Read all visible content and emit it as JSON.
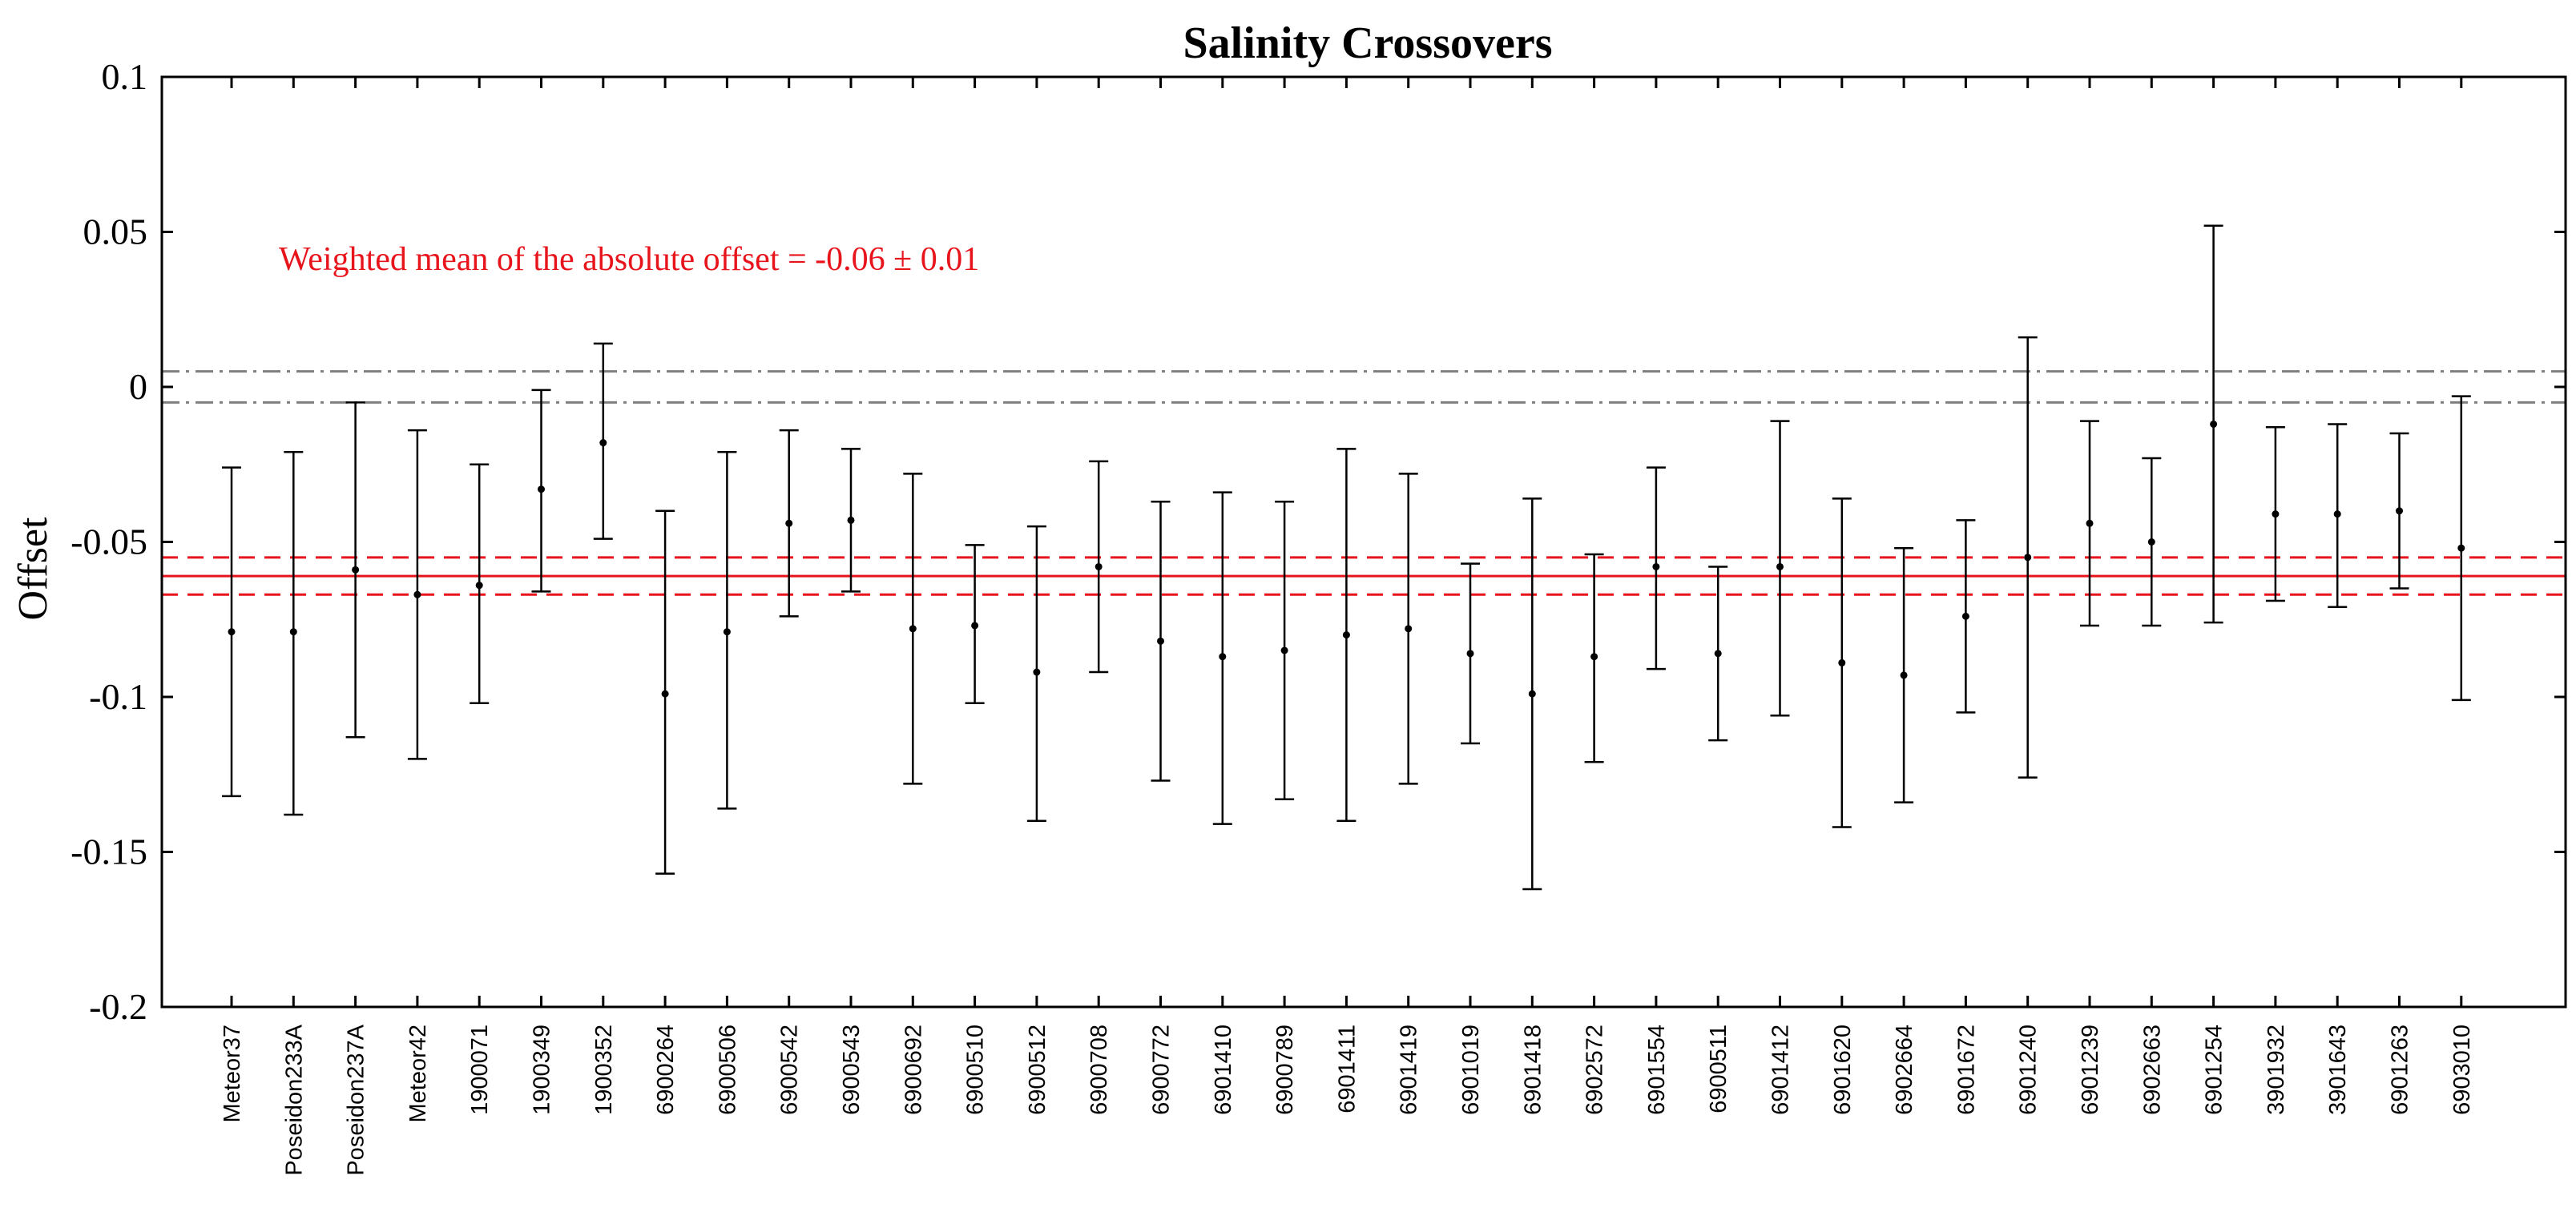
{
  "chart_data": {
    "type": "errorbar",
    "title": "Salinity Crossovers",
    "xlabel": "",
    "ylabel": "Offset",
    "ylim": [
      -0.2,
      0.1
    ],
    "yticks": [
      "0.1",
      "0.05",
      "0",
      "-0.05",
      "-0.1",
      "-0.15",
      "-0.2"
    ],
    "ytick_values": [
      0.1,
      0.05,
      0,
      -0.05,
      -0.1,
      -0.15,
      -0.2
    ],
    "grid": false,
    "annotation": "Weighted mean of the absolute offset = -0.06 ± 0.01",
    "reference_lines": {
      "mean": -0.061,
      "mean_band": [
        -0.055,
        -0.067
      ],
      "zero_band": [
        0.005,
        -0.005
      ]
    },
    "colors": {
      "mean_line": "#e8141c",
      "zero_band": "#7f7f7f",
      "points": "#000000"
    },
    "categories": [
      "Meteor37",
      "Poseidon233A",
      "Poseidon237A",
      "Meteor42",
      "1900071",
      "1900349",
      "1900352",
      "6900264",
      "6900506",
      "6900542",
      "6900543",
      "6900692",
      "6900510",
      "6900512",
      "6900708",
      "6900772",
      "6901410",
      "6900789",
      "6901411",
      "6901419",
      "6901019",
      "6901418",
      "6902572",
      "6901554",
      "6900511",
      "6901412",
      "6901620",
      "6902664",
      "6901672",
      "6901240",
      "6901239",
      "6902663",
      "6901254",
      "3901932",
      "3901643",
      "6901263",
      "6903010"
    ],
    "values": [
      -0.079,
      -0.079,
      -0.059,
      -0.067,
      -0.064,
      -0.033,
      -0.018,
      -0.099,
      -0.079,
      -0.044,
      -0.043,
      -0.078,
      -0.077,
      -0.092,
      -0.058,
      -0.082,
      -0.087,
      -0.085,
      -0.08,
      -0.078,
      -0.086,
      -0.099,
      -0.087,
      -0.058,
      -0.086,
      -0.058,
      -0.089,
      -0.093,
      -0.074,
      -0.055,
      -0.044,
      -0.05,
      -0.012,
      -0.041,
      -0.041,
      -0.04,
      -0.052
    ],
    "upper": [
      -0.026,
      -0.021,
      -0.005,
      -0.014,
      -0.025,
      -0.001,
      0.014,
      -0.04,
      -0.021,
      -0.014,
      -0.02,
      -0.028,
      -0.051,
      -0.045,
      -0.024,
      -0.037,
      -0.034,
      -0.037,
      -0.02,
      -0.028,
      -0.057,
      -0.036,
      -0.054,
      -0.026,
      -0.058,
      -0.011,
      -0.036,
      -0.052,
      -0.043,
      0.016,
      -0.011,
      -0.023,
      0.052,
      -0.013,
      -0.012,
      -0.015,
      -0.003
    ],
    "lower": [
      -0.132,
      -0.138,
      -0.113,
      -0.12,
      -0.102,
      -0.066,
      -0.049,
      -0.157,
      -0.136,
      -0.074,
      -0.066,
      -0.128,
      -0.102,
      -0.14,
      -0.092,
      -0.127,
      -0.141,
      -0.133,
      -0.14,
      -0.128,
      -0.115,
      -0.162,
      -0.121,
      -0.091,
      -0.114,
      -0.106,
      -0.142,
      -0.134,
      -0.105,
      -0.126,
      -0.077,
      -0.077,
      -0.076,
      -0.069,
      -0.071,
      -0.065,
      -0.101
    ]
  }
}
